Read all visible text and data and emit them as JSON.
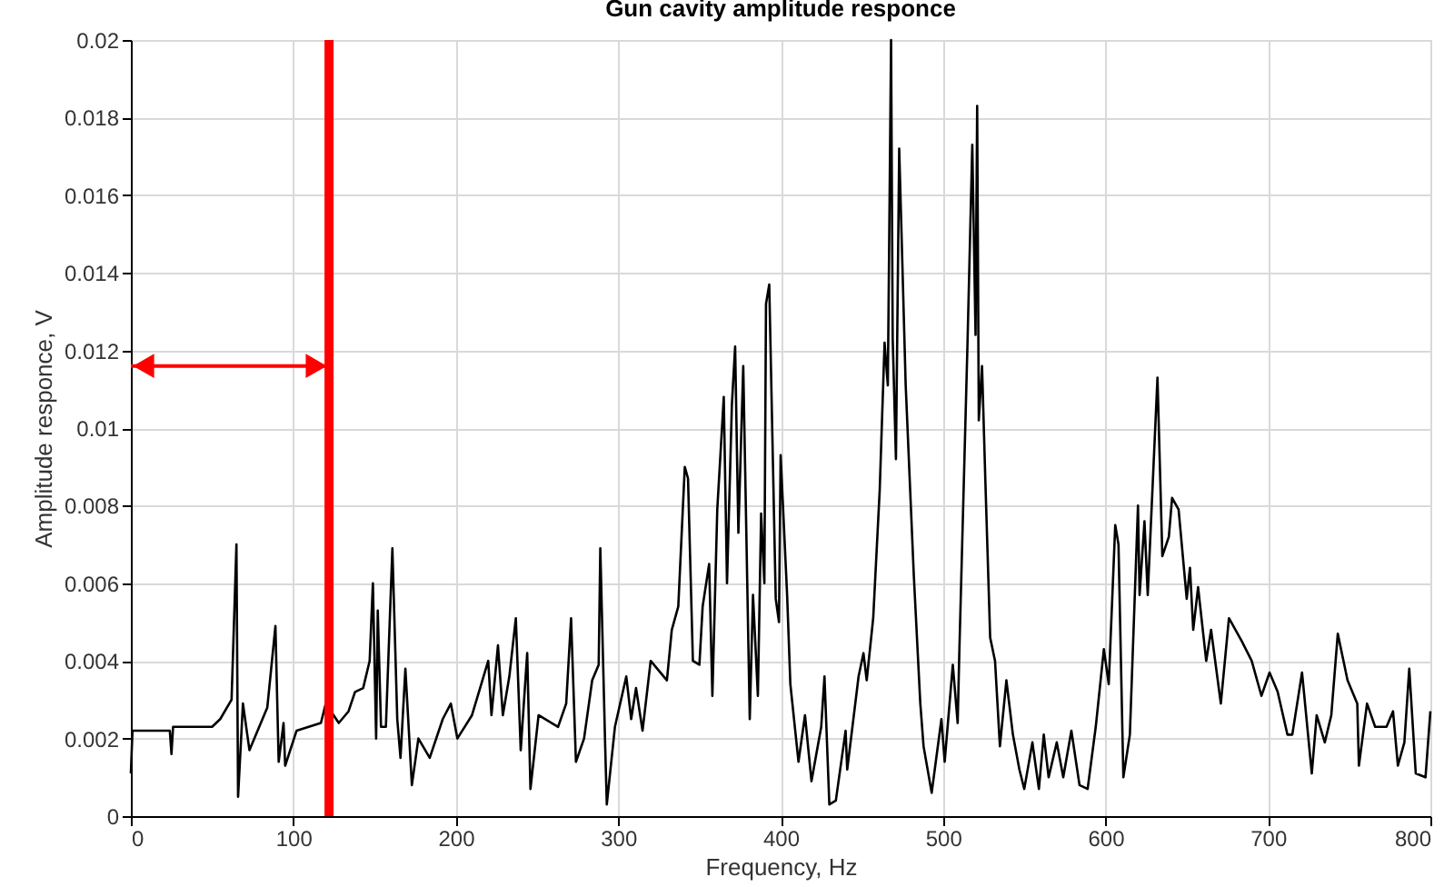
{
  "chart_data": {
    "type": "line",
    "title": "Gun cavity amplitude responce",
    "xlabel": "Frequency, Hz",
    "ylabel": "Amplitude responce, V",
    "xlim": [
      0,
      800
    ],
    "xticks": [
      0,
      100,
      200,
      300,
      400,
      500,
      600,
      700,
      800
    ],
    "ylim": [
      0,
      0.02
    ],
    "yticks": [
      0,
      0.002,
      0.004,
      0.006,
      0.008,
      0.01,
      0.012,
      0.014,
      0.016,
      0.018,
      0.02
    ],
    "grid": true,
    "marker": "none",
    "line_style": "solid",
    "ref_lines": [
      {
        "axis": "x",
        "value": 122,
        "color": "#ff0000"
      }
    ],
    "series": [
      {
        "color": "#000000",
        "x": [
          0,
          1,
          24,
          25,
          26,
          50,
          55,
          62,
          65,
          66,
          69,
          73,
          84,
          89,
          91,
          94,
          95,
          102,
          117,
          120,
          128,
          134,
          138,
          143,
          147,
          149,
          151,
          152,
          154,
          157,
          161,
          164,
          166,
          169,
          173,
          177,
          184,
          192,
          197,
          201,
          210,
          220,
          222,
          226,
          229,
          233,
          237,
          240,
          244,
          246,
          251,
          263,
          268,
          271,
          274,
          279,
          284,
          288,
          289,
          292,
          293,
          298,
          305,
          308,
          311,
          315,
          320,
          330,
          333,
          337,
          341,
          343,
          346,
          350,
          352,
          356,
          358,
          361,
          365,
          367,
          370,
          372,
          374,
          377,
          381,
          383,
          386,
          388,
          390,
          391,
          393,
          397,
          399,
          400,
          404,
          406,
          411,
          415,
          419,
          425,
          427,
          430,
          434,
          440,
          441,
          448,
          451,
          453,
          457,
          461,
          464,
          466,
          468,
          469,
          471,
          473,
          477,
          482,
          486,
          488,
          493,
          499,
          501,
          506,
          509,
          510,
          515,
          518,
          520,
          521,
          522,
          524,
          526,
          529,
          532,
          535,
          539,
          543,
          547,
          550,
          555,
          559,
          562,
          565,
          570,
          574,
          579,
          584,
          589,
          594,
          599,
          602,
          606,
          608,
          611,
          615,
          620,
          621,
          624,
          626,
          632,
          635,
          639,
          641,
          645,
          650,
          652,
          654,
          657,
          662,
          665,
          671,
          676,
          684,
          690,
          696,
          701,
          706,
          712,
          715,
          721,
          727,
          730,
          735,
          739,
          743,
          749,
          755,
          756,
          761,
          766,
          773,
          777,
          780,
          784,
          787,
          791,
          797,
          800
        ],
        "values": [
          0.0011,
          0.0022,
          0.0022,
          0.0016,
          0.0023,
          0.0023,
          0.0025,
          0.003,
          0.007,
          0.0005,
          0.0029,
          0.0017,
          0.0028,
          0.0049,
          0.0014,
          0.0024,
          0.0013,
          0.0022,
          0.0024,
          0.0029,
          0.0024,
          0.0027,
          0.0032,
          0.0033,
          0.004,
          0.006,
          0.002,
          0.0053,
          0.0023,
          0.0023,
          0.0069,
          0.0025,
          0.0015,
          0.0038,
          0.0008,
          0.002,
          0.0015,
          0.0025,
          0.0029,
          0.002,
          0.0026,
          0.004,
          0.0026,
          0.0044,
          0.0026,
          0.0036,
          0.0051,
          0.0017,
          0.0042,
          0.0007,
          0.0026,
          0.0023,
          0.0029,
          0.0051,
          0.0014,
          0.002,
          0.0035,
          0.0039,
          0.0069,
          0.0018,
          0.0003,
          0.0023,
          0.0036,
          0.0025,
          0.0033,
          0.0022,
          0.004,
          0.0035,
          0.0048,
          0.0054,
          0.009,
          0.0087,
          0.004,
          0.0039,
          0.0054,
          0.0065,
          0.0031,
          0.0079,
          0.0108,
          0.006,
          0.0106,
          0.0121,
          0.0073,
          0.0116,
          0.0025,
          0.0057,
          0.0031,
          0.0078,
          0.006,
          0.0132,
          0.0137,
          0.0056,
          0.005,
          0.0093,
          0.0057,
          0.0034,
          0.0014,
          0.0026,
          0.0009,
          0.0023,
          0.0036,
          0.0003,
          0.0004,
          0.0022,
          0.0012,
          0.0036,
          0.0042,
          0.0035,
          0.0051,
          0.0084,
          0.0122,
          0.0111,
          0.02,
          0.0123,
          0.0092,
          0.0172,
          0.0111,
          0.0062,
          0.0029,
          0.0018,
          0.0006,
          0.0025,
          0.0014,
          0.0039,
          0.0024,
          0.0042,
          0.0121,
          0.0173,
          0.0124,
          0.0183,
          0.0102,
          0.0116,
          0.0087,
          0.0046,
          0.004,
          0.0018,
          0.0035,
          0.0021,
          0.0012,
          0.0007,
          0.0019,
          0.0007,
          0.0021,
          0.001,
          0.0019,
          0.001,
          0.0022,
          0.0008,
          0.0007,
          0.0023,
          0.0043,
          0.0034,
          0.0075,
          0.007,
          0.001,
          0.0021,
          0.008,
          0.0057,
          0.0076,
          0.0057,
          0.0113,
          0.0067,
          0.0072,
          0.0082,
          0.0079,
          0.0056,
          0.0064,
          0.0048,
          0.0059,
          0.004,
          0.0048,
          0.0029,
          0.0051,
          0.0045,
          0.004,
          0.0031,
          0.0037,
          0.0032,
          0.0021,
          0.0021,
          0.0037,
          0.0011,
          0.0026,
          0.0019,
          0.0026,
          0.0047,
          0.0035,
          0.0029,
          0.0013,
          0.0029,
          0.0023,
          0.0023,
          0.0027,
          0.0013,
          0.0019,
          0.0038,
          0.0011,
          0.001,
          0.0027
        ]
      }
    ]
  }
}
